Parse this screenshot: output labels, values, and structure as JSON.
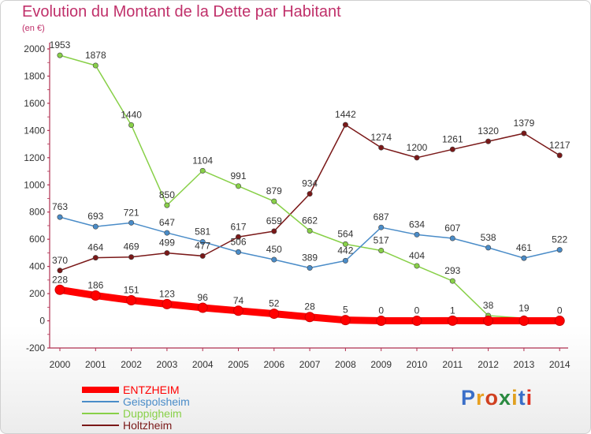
{
  "header": {
    "title": "Evolution du Montant de la Dette par Habitant",
    "unit": "(en €)"
  },
  "logo": {
    "text": "Proxiti",
    "colors": [
      "#3a6ec8",
      "#e8a020",
      "#d04020",
      "#2a8a40",
      "#e0a020",
      "#3a6ec8",
      "#e03020"
    ]
  },
  "chart_data": {
    "type": "line",
    "x": [
      "2000",
      "2001",
      "2002",
      "2003",
      "2004",
      "2005",
      "2006",
      "2007",
      "2008",
      "2009",
      "2010",
      "2011",
      "2012",
      "2013",
      "2014"
    ],
    "ylim": [
      -200,
      2000
    ],
    "yticks": [
      -200,
      0,
      200,
      400,
      600,
      800,
      1000,
      1200,
      1400,
      1600,
      1800,
      2000
    ],
    "grid": false,
    "legend": "bottom-left",
    "series": [
      {
        "name": "ENTZHEIM",
        "color": "#ff0000",
        "values": [
          228,
          186,
          151,
          123,
          96,
          74,
          52,
          28,
          5,
          0,
          0,
          1,
          0,
          0,
          0
        ],
        "labels": [
          "228",
          "186",
          "151",
          "123",
          "96",
          "74",
          "52",
          "28",
          "5",
          "0",
          "0",
          "1",
          "",
          "",
          ""
        ]
      },
      {
        "name": "Geispolsheim",
        "color": "#4a8cc8",
        "values": [
          763,
          693,
          721,
          647,
          581,
          506,
          450,
          389,
          442,
          687,
          634,
          607,
          538,
          461,
          522
        ],
        "labels": [
          "763",
          "693",
          "721",
          "647",
          "581",
          "506",
          "450",
          "389",
          "442",
          "687",
          "634",
          "607",
          "538",
          "461",
          "522"
        ]
      },
      {
        "name": "Duppigheim",
        "color": "#88d048",
        "values": [
          1953,
          1878,
          1440,
          850,
          1104,
          991,
          879,
          662,
          564,
          517,
          404,
          293,
          38,
          19,
          0
        ],
        "labels": [
          "1953",
          "1878",
          "1440",
          "850",
          "1104",
          "991",
          "879",
          "662",
          "564",
          "517",
          "404",
          "293",
          "38",
          "19",
          "0"
        ]
      },
      {
        "name": "Holtzheim",
        "color": "#7a1818",
        "values": [
          370,
          464,
          469,
          499,
          477,
          617,
          659,
          934,
          1442,
          1274,
          1200,
          1261,
          1320,
          1379,
          1217
        ],
        "labels": [
          "370",
          "464",
          "469",
          "499",
          "477",
          "617",
          "659",
          "934",
          "1442",
          "1274",
          "1200",
          "1261",
          "1320",
          "1379",
          "1217"
        ]
      }
    ]
  }
}
